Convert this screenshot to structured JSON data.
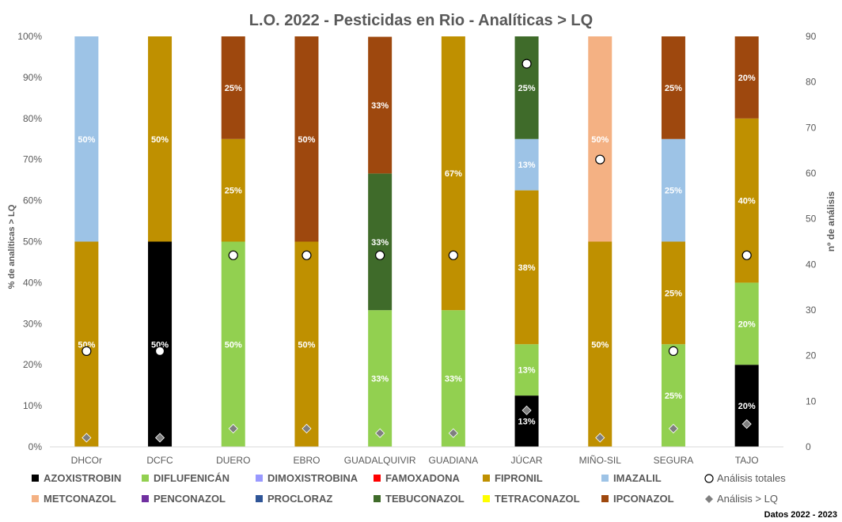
{
  "chart_data": {
    "type": "bar",
    "stacked": true,
    "title": "L.O. 2022 - Pesticidas en Rio - Analíticas > LQ",
    "ylabel": "% de analíticas  > LQ",
    "y2label": "nº  de análisis",
    "ylim": [
      0,
      100
    ],
    "y2lim": [
      0,
      90
    ],
    "yticks": [
      "0%",
      "10%",
      "20%",
      "30%",
      "40%",
      "50%",
      "60%",
      "70%",
      "80%",
      "90%",
      "100%"
    ],
    "y2ticks": [
      "0",
      "10",
      "20",
      "30",
      "40",
      "50",
      "60",
      "70",
      "80",
      "90"
    ],
    "categories": [
      "DHCOr",
      "DCFC",
      "DUERO",
      "EBRO",
      "GUADALQUIVIR",
      "GUADIANA",
      "JÚCAR",
      "MIÑO-SIL",
      "SEGURA",
      "TAJO"
    ],
    "footer": "Datos 2022 - 2023",
    "series": [
      {
        "name": "AZOXISTROBIN",
        "color": "#000000",
        "values": [
          0,
          50,
          0,
          0,
          0,
          0,
          12.5,
          0,
          0,
          20
        ],
        "labels": [
          "",
          "50%",
          "",
          "",
          "",
          "",
          "13%",
          "",
          "",
          "20%"
        ]
      },
      {
        "name": "DIFLUFENICÁN",
        "color": "#92D050",
        "values": [
          0,
          0,
          50,
          0,
          33.3,
          33.3,
          12.5,
          0,
          25,
          20
        ],
        "labels": [
          "",
          "",
          "50%",
          "",
          "33%",
          "33%",
          "13%",
          "",
          "25%",
          "20%"
        ]
      },
      {
        "name": "DIMOXISTROBINA",
        "color": "#9999FF",
        "values": [
          0,
          0,
          0,
          0,
          0,
          0,
          0,
          0,
          0,
          0
        ],
        "labels": [
          "",
          "",
          "",
          "",
          "",
          "",
          "",
          "",
          "",
          ""
        ]
      },
      {
        "name": "FAMOXADONA",
        "color": "#FF0000",
        "values": [
          0,
          0,
          0,
          0,
          0,
          0,
          0,
          0,
          0,
          0
        ],
        "labels": [
          "",
          "",
          "",
          "",
          "",
          "",
          "",
          "",
          "",
          ""
        ]
      },
      {
        "name": "FIPRONIL",
        "color": "#BF9000",
        "values": [
          50,
          50,
          25,
          50,
          0,
          66.7,
          37.5,
          50,
          25,
          40
        ],
        "labels": [
          "50%",
          "50%",
          "25%",
          "50%",
          "",
          "67%",
          "38%",
          "50%",
          "25%",
          "40%"
        ]
      },
      {
        "name": "IMAZALIL",
        "color": "#9DC3E6",
        "values": [
          50,
          0,
          0,
          0,
          0,
          0,
          12.5,
          0,
          25,
          0
        ],
        "labels": [
          "50%",
          "",
          "",
          "",
          "",
          "",
          "13%",
          "",
          "25%",
          ""
        ]
      },
      {
        "name": "METCONAZOL",
        "color": "#F4B183",
        "values": [
          0,
          0,
          0,
          0,
          0,
          0,
          0,
          50,
          0,
          0
        ],
        "labels": [
          "",
          "",
          "",
          "",
          "",
          "",
          "",
          "50%",
          "",
          ""
        ]
      },
      {
        "name": "PENCONAZOL",
        "color": "#7030A0",
        "values": [
          0,
          0,
          0,
          0,
          0,
          0,
          0,
          0,
          0,
          0
        ],
        "labels": [
          "",
          "",
          "",
          "",
          "",
          "",
          "",
          "",
          "",
          ""
        ]
      },
      {
        "name": "PROCLORAZ",
        "color": "#2F5597",
        "values": [
          0,
          0,
          0,
          0,
          0,
          0,
          0,
          0,
          0,
          0
        ],
        "labels": [
          "",
          "",
          "",
          "",
          "",
          "",
          "",
          "",
          "",
          ""
        ]
      },
      {
        "name": "TEBUCONAZOL",
        "color": "#3F6B2A",
        "values": [
          0,
          0,
          0,
          0,
          33.3,
          0,
          25,
          0,
          0,
          0
        ],
        "labels": [
          "",
          "",
          "",
          "",
          "33%",
          "",
          "25%",
          "",
          "",
          ""
        ]
      },
      {
        "name": "TETRACONAZOL",
        "color": "#FFFF00",
        "values": [
          0,
          0,
          0,
          0,
          0,
          0,
          0,
          0,
          0,
          0
        ],
        "labels": [
          "",
          "",
          "",
          "",
          "",
          "",
          "",
          "",
          "",
          ""
        ]
      },
      {
        "name": "IPCONAZOL",
        "color": "#9E480E",
        "values": [
          0,
          0,
          25,
          50,
          33.3,
          0,
          0,
          0,
          25,
          20
        ],
        "labels": [
          "",
          "",
          "25%",
          "50%",
          "33%",
          "",
          "",
          "",
          "25%",
          "20%"
        ]
      }
    ],
    "markers": [
      {
        "name": "Análisis totales",
        "shape": "circle",
        "values": [
          21,
          21,
          42,
          42,
          42,
          42,
          84,
          63,
          21,
          42
        ]
      },
      {
        "name": "Análisis > LQ",
        "shape": "diamond",
        "values": [
          2,
          2,
          4,
          4,
          3,
          3,
          8,
          2,
          4,
          5
        ]
      }
    ]
  }
}
